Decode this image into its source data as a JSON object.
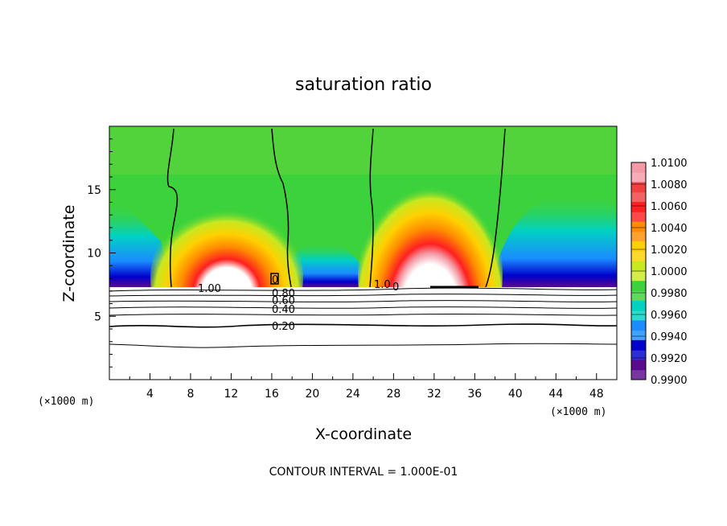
{
  "chart_data": {
    "type": "heatmap",
    "title": "saturation ratio",
    "xlabel": "X-coordinate",
    "ylabel": "Z-coordinate",
    "x_unit": "(×1000 m)",
    "y_unit": "(×1000 m)",
    "xlim": [
      0,
      50
    ],
    "ylim": [
      0,
      20
    ],
    "x_ticks": [
      "4",
      "8",
      "12",
      "16",
      "20",
      "24",
      "28",
      "32",
      "36",
      "40",
      "44",
      "48"
    ],
    "y_ticks": [
      "5",
      "10",
      "15"
    ],
    "colorbar": {
      "labels": [
        "1.0100",
        "1.0080",
        "1.0060",
        "1.0040",
        "1.0020",
        "1.0000",
        "0.9980",
        "0.9960",
        "0.9940",
        "0.9920",
        "0.9900"
      ],
      "colors": [
        "#f49aa6",
        "#f04040",
        "#ff2020",
        "#ff8c00",
        "#ffd000",
        "#c8e820",
        "#3cd23c",
        "#00d2c0",
        "#1a8cff",
        "#0000cc",
        "#5a0a8c"
      ]
    },
    "contour_labels": [
      "1.00",
      "0.80",
      "0.60",
      "0.40",
      "0.20",
      "1.0",
      "0",
      "0"
    ],
    "contour_interval_text": "CONTOUR INTERVAL = 1.000E-01",
    "colors": {
      "supersaturated_peak": "#ffffff",
      "saturated": "#3cd23c",
      "subsaturated_edge": "#5a0a8c"
    }
  }
}
